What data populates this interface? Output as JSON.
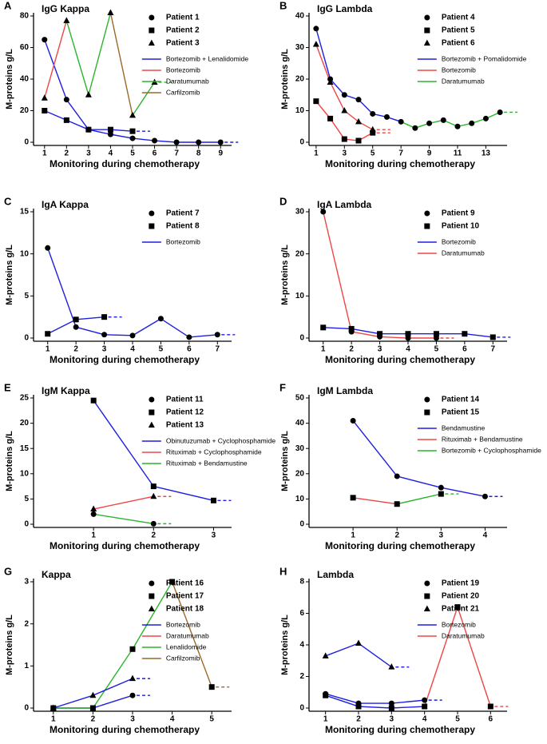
{
  "chart_data": [
    {
      "type": "line",
      "panel": "A",
      "title": "IgG Kappa",
      "x_label": "Monitoring during chemotherapy",
      "y_label": "M-proteins g/L",
      "xlim": [
        0.5,
        9.5
      ],
      "ylim": [
        0,
        80
      ],
      "xticks": [
        1,
        2,
        3,
        4,
        5,
        6,
        7,
        8,
        9
      ],
      "yticks": [
        0,
        20,
        40,
        60,
        80
      ],
      "treatments": [
        {
          "name": "Bortezomib + Lenalidomide",
          "color": "#1f1fe0"
        },
        {
          "name": "Bortezomib",
          "color": "#f04545"
        },
        {
          "name": "Daratumumab",
          "color": "#2ab52a"
        },
        {
          "name": "Carfilzomib",
          "color": "#9a6a2a"
        }
      ],
      "series": [
        {
          "name": "Patient 1",
          "marker": "circle",
          "x": [
            1,
            2,
            3,
            4,
            5,
            6,
            7,
            8,
            9
          ],
          "values": [
            65,
            27,
            8,
            5,
            2.5,
            1,
            0,
            0,
            0
          ],
          "segment_colors": [
            "#1f1fe0",
            "#1f1fe0",
            "#1f1fe0",
            "#1f1fe0",
            "#1f1fe0",
            "#1f1fe0",
            "#1f1fe0",
            "#1f1fe0"
          ]
        },
        {
          "name": "Patient 2",
          "marker": "square",
          "x": [
            1,
            2,
            3,
            4,
            5
          ],
          "values": [
            20,
            14,
            8,
            8,
            7
          ],
          "segment_colors": [
            "#1f1fe0",
            "#1f1fe0",
            "#1f1fe0",
            "#1f1fe0"
          ]
        },
        {
          "name": "Patient 3",
          "marker": "triangle",
          "x": [
            1,
            2,
            3,
            4,
            5,
            6
          ],
          "values": [
            28,
            77,
            30,
            82,
            17,
            38
          ],
          "segment_colors": [
            "#f04545",
            "#2ab52a",
            "#2ab52a",
            "#9a6a2a",
            "#2ab52a"
          ]
        }
      ]
    },
    {
      "type": "line",
      "panel": "B",
      "title": "IgG Lambda",
      "x_label": "Monitoring during chemotherapy",
      "y_label": "M-proteins g/L",
      "xlim": [
        0.5,
        14.5
      ],
      "ylim": [
        0,
        40
      ],
      "xticks": [
        1,
        3,
        5,
        7,
        9,
        11,
        13
      ],
      "yticks": [
        0,
        10,
        20,
        30,
        40
      ],
      "treatments": [
        {
          "name": "Bortezomib + Pomalidomide",
          "color": "#1f1fe0"
        },
        {
          "name": "Bortezomib",
          "color": "#f04545"
        },
        {
          "name": "Daratumumab",
          "color": "#2ab52a"
        }
      ],
      "series": [
        {
          "name": "Patient 4",
          "marker": "circle",
          "x": [
            1,
            2,
            3,
            4,
            5,
            6,
            7,
            8,
            9,
            10,
            11,
            12,
            13,
            14
          ],
          "values": [
            36,
            20,
            15,
            13.5,
            9,
            8,
            6.5,
            4.5,
            6,
            7,
            5,
            6,
            7.5,
            9.5
          ],
          "segment_colors": [
            "#1f1fe0",
            "#1f1fe0",
            "#1f1fe0",
            "#1f1fe0",
            "#1f1fe0",
            "#1f1fe0",
            "#2ab52a",
            "#2ab52a",
            "#2ab52a",
            "#2ab52a",
            "#2ab52a",
            "#2ab52a",
            "#2ab52a"
          ]
        },
        {
          "name": "Patient 5",
          "marker": "square",
          "x": [
            1,
            2,
            3,
            4,
            5
          ],
          "values": [
            13,
            7.5,
            1,
            0.5,
            3
          ],
          "segment_colors": [
            "#f04545",
            "#f04545",
            "#f04545",
            "#f04545"
          ]
        },
        {
          "name": "Patient 6",
          "marker": "triangle",
          "x": [
            1,
            2,
            3,
            4,
            5
          ],
          "values": [
            31,
            19,
            10,
            6.5,
            4
          ],
          "segment_colors": [
            "#f04545",
            "#f04545",
            "#f04545",
            "#f04545"
          ]
        }
      ]
    },
    {
      "type": "line",
      "panel": "C",
      "title": "IgA Kappa",
      "x_label": "Monitoring during chemotherapy",
      "y_label": "M-proteins g/L",
      "xlim": [
        0.5,
        7.5
      ],
      "ylim": [
        0,
        15
      ],
      "xticks": [
        1,
        2,
        3,
        4,
        5,
        6,
        7
      ],
      "yticks": [
        0,
        5,
        10,
        15
      ],
      "treatments": [
        {
          "name": "Bortezomib",
          "color": "#1f1fe0"
        }
      ],
      "series": [
        {
          "name": "Patient 7",
          "marker": "circle",
          "x": [
            1,
            2,
            3,
            4,
            5,
            6,
            7
          ],
          "values": [
            10.7,
            1.3,
            0.4,
            0.3,
            2.3,
            0.1,
            0.4
          ],
          "segment_colors": [
            "#1f1fe0",
            "#1f1fe0",
            "#1f1fe0",
            "#1f1fe0",
            "#1f1fe0",
            "#1f1fe0"
          ]
        },
        {
          "name": "Patient 8",
          "marker": "square",
          "x": [
            1,
            2,
            3
          ],
          "values": [
            0.5,
            2.2,
            2.5
          ],
          "segment_colors": [
            "#1f1fe0",
            "#1f1fe0"
          ]
        }
      ]
    },
    {
      "type": "line",
      "panel": "D",
      "title": "IgA Lambda",
      "x_label": "Monitoring during chemotherapy",
      "y_label": "M-proteins g/L",
      "xlim": [
        0.5,
        7.5
      ],
      "ylim": [
        0,
        30
      ],
      "xticks": [
        1,
        2,
        3,
        4,
        5,
        6,
        7
      ],
      "yticks": [
        0,
        10,
        20,
        30
      ],
      "treatments": [
        {
          "name": "Bortezomib",
          "color": "#1f1fe0"
        },
        {
          "name": "Daratumumab",
          "color": "#f04545"
        }
      ],
      "series": [
        {
          "name": "Patient 9",
          "marker": "circle",
          "x": [
            1,
            2,
            3,
            4,
            5
          ],
          "values": [
            30,
            1.5,
            0.3,
            0,
            0
          ],
          "segment_colors": [
            "#f04545",
            "#f04545",
            "#f04545",
            "#f04545"
          ]
        },
        {
          "name": "Patient 10",
          "marker": "square",
          "x": [
            1,
            2,
            3,
            4,
            5,
            6,
            7
          ],
          "values": [
            2.5,
            2.2,
            1,
            1,
            1,
            1,
            0.2
          ],
          "segment_colors": [
            "#1f1fe0",
            "#1f1fe0",
            "#1f1fe0",
            "#1f1fe0",
            "#1f1fe0",
            "#1f1fe0"
          ]
        }
      ]
    },
    {
      "type": "line",
      "panel": "E",
      "title": "IgM Kappa",
      "x_label": "Monitoring during chemotherapy",
      "y_label": "M-proteins g/L",
      "xlim": [
        0,
        3.3
      ],
      "ylim": [
        0,
        25
      ],
      "xticks": [
        1,
        2,
        3
      ],
      "yticks": [
        0,
        5,
        10,
        15,
        20,
        25
      ],
      "treatments": [
        {
          "name": "Obinutuzumab + Cyclophosphamide",
          "color": "#1f1fe0"
        },
        {
          "name": "Rituximab + Cyclophosphamide",
          "color": "#f04545"
        },
        {
          "name": "Rituximab + Bendamustine",
          "color": "#2ab52a"
        }
      ],
      "series": [
        {
          "name": "Patient 11",
          "marker": "circle",
          "x": [
            1,
            2
          ],
          "values": [
            2,
            0.1
          ],
          "segment_colors": [
            "#2ab52a"
          ]
        },
        {
          "name": "Patient 12",
          "marker": "square",
          "x": [
            1,
            2,
            3
          ],
          "values": [
            24.5,
            7.5,
            4.7
          ],
          "segment_colors": [
            "#1f1fe0",
            "#1f1fe0"
          ]
        },
        {
          "name": "Patient 13",
          "marker": "triangle",
          "x": [
            1,
            2
          ],
          "values": [
            3,
            5.5
          ],
          "segment_colors": [
            "#f04545"
          ]
        }
      ]
    },
    {
      "type": "line",
      "panel": "F",
      "title": "IgM Lambda",
      "x_label": "Monitoring during chemotherapy",
      "y_label": "M-proteins g/L",
      "xlim": [
        0,
        4.5
      ],
      "ylim": [
        0,
        50
      ],
      "xticks": [
        1,
        2,
        3,
        4
      ],
      "yticks": [
        0,
        10,
        20,
        30,
        40,
        50
      ],
      "treatments": [
        {
          "name": "Bendamustine",
          "color": "#1f1fe0"
        },
        {
          "name": "Rituximab + Bendamustine",
          "color": "#f04545"
        },
        {
          "name": "Bortezomib + Cyclophosphamide",
          "color": "#2ab52a"
        }
      ],
      "series": [
        {
          "name": "Patient 14",
          "marker": "circle",
          "x": [
            1,
            2,
            3,
            4
          ],
          "values": [
            41,
            19,
            14.5,
            11
          ],
          "segment_colors": [
            "#1f1fe0",
            "#1f1fe0",
            "#1f1fe0"
          ]
        },
        {
          "name": "Patient 15",
          "marker": "square",
          "x": [
            1,
            2,
            3
          ],
          "values": [
            10.5,
            8,
            12
          ],
          "segment_colors": [
            "#f04545",
            "#2ab52a"
          ]
        }
      ]
    },
    {
      "type": "line",
      "panel": "G",
      "title": "Kappa",
      "x_label": "Monitoring during chemotherapy",
      "y_label": "M-proteins g/L",
      "xlim": [
        0.5,
        5.5
      ],
      "ylim": [
        0,
        3
      ],
      "xticks": [
        1,
        2,
        3,
        4,
        5
      ],
      "yticks": [
        0,
        1,
        2,
        3
      ],
      "treatments": [
        {
          "name": "Bortezomib",
          "color": "#1f1fe0"
        },
        {
          "name": "Daratumumab",
          "color": "#f04545"
        },
        {
          "name": "Lenalidomide",
          "color": "#2ab52a"
        },
        {
          "name": "Carfilzomib",
          "color": "#9a6a2a"
        }
      ],
      "series": [
        {
          "name": "Patient 16",
          "marker": "circle",
          "x": [
            1,
            2,
            3
          ],
          "values": [
            0,
            0,
            0.3
          ],
          "segment_colors": [
            "#1f1fe0",
            "#1f1fe0"
          ]
        },
        {
          "name": "Patient 17",
          "marker": "square",
          "x": [
            1,
            2,
            3,
            4,
            5
          ],
          "values": [
            0,
            0,
            1.4,
            3,
            0.5
          ],
          "segment_colors": [
            "#2ab52a",
            "#2ab52a",
            "#2ab52a",
            "#9a6a2a"
          ]
        },
        {
          "name": "Patient 18",
          "marker": "triangle",
          "x": [
            1,
            2,
            3
          ],
          "values": [
            0,
            0.3,
            0.7
          ],
          "segment_colors": [
            "#1f1fe0",
            "#1f1fe0"
          ]
        }
      ]
    },
    {
      "type": "line",
      "panel": "H",
      "title": "Lambda",
      "x_label": "Monitoring during chemotherapy",
      "y_label": "M-proteins g/L",
      "xlim": [
        0.5,
        6.5
      ],
      "ylim": [
        0,
        8
      ],
      "xticks": [
        1,
        2,
        3,
        4,
        5,
        6
      ],
      "yticks": [
        0,
        2,
        4,
        6,
        8
      ],
      "treatments": [
        {
          "name": "Bortezomib",
          "color": "#1f1fe0"
        },
        {
          "name": "Daratumumab",
          "color": "#f04545"
        }
      ],
      "series": [
        {
          "name": "Patient 19",
          "marker": "circle",
          "x": [
            1,
            2,
            3,
            4
          ],
          "values": [
            0.9,
            0.3,
            0.3,
            0.5
          ],
          "segment_colors": [
            "#1f1fe0",
            "#1f1fe0",
            "#1f1fe0"
          ]
        },
        {
          "name": "Patient 20",
          "marker": "square",
          "x": [
            1,
            2,
            3,
            4,
            5,
            6
          ],
          "values": [
            0.8,
            0.1,
            0,
            0.1,
            6.4,
            0.1
          ],
          "segment_colors": [
            "#1f1fe0",
            "#1f1fe0",
            "#1f1fe0",
            "#f04545",
            "#f04545"
          ]
        },
        {
          "name": "Patient 21",
          "marker": "triangle",
          "x": [
            1,
            2,
            3
          ],
          "values": [
            3.3,
            4.1,
            2.6
          ],
          "segment_colors": [
            "#1f1fe0",
            "#1f1fe0"
          ]
        }
      ]
    }
  ]
}
